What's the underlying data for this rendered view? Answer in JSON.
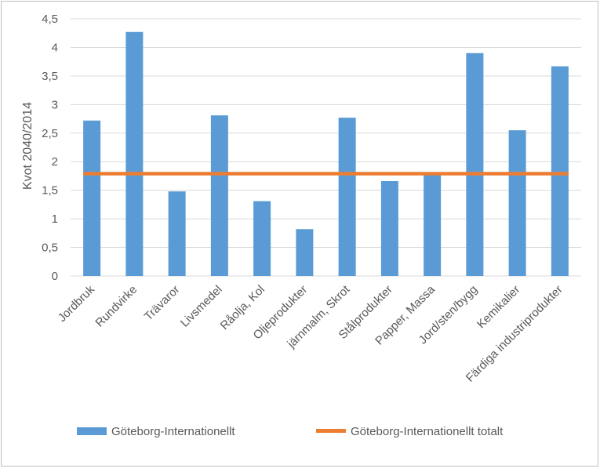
{
  "chart_data": {
    "type": "bar",
    "title": "",
    "xlabel": "",
    "ylabel": "Kvot 2040/2014",
    "ylim": [
      0,
      4.5
    ],
    "yticks": [
      "0",
      "0,5",
      "1",
      "1,5",
      "2",
      "2,5",
      "3",
      "3,5",
      "4",
      "4,5"
    ],
    "grid": true,
    "legend_position": "bottom",
    "categories": [
      "Jordbruk",
      "Rundvirke",
      "Trävaror",
      "Livsmedel",
      "Råolja, Kol",
      "Oljeprodukter",
      "järnmalm, Skrot",
      "Stålprodukter",
      "Papper, Massa",
      "Jord/sten/bygg",
      "Kemikalier",
      "Färdiga industriprodukter"
    ],
    "series": [
      {
        "name": "Göteborg-Internationellt",
        "type": "bar",
        "color": "#5B9BD5",
        "values": [
          2.72,
          4.27,
          1.48,
          2.81,
          1.31,
          0.82,
          2.77,
          1.66,
          1.78,
          3.9,
          2.55,
          3.67
        ]
      },
      {
        "name": "Göteborg-Internationellt totalt",
        "type": "line",
        "color": "#ED7D31",
        "value": 1.79
      }
    ]
  }
}
